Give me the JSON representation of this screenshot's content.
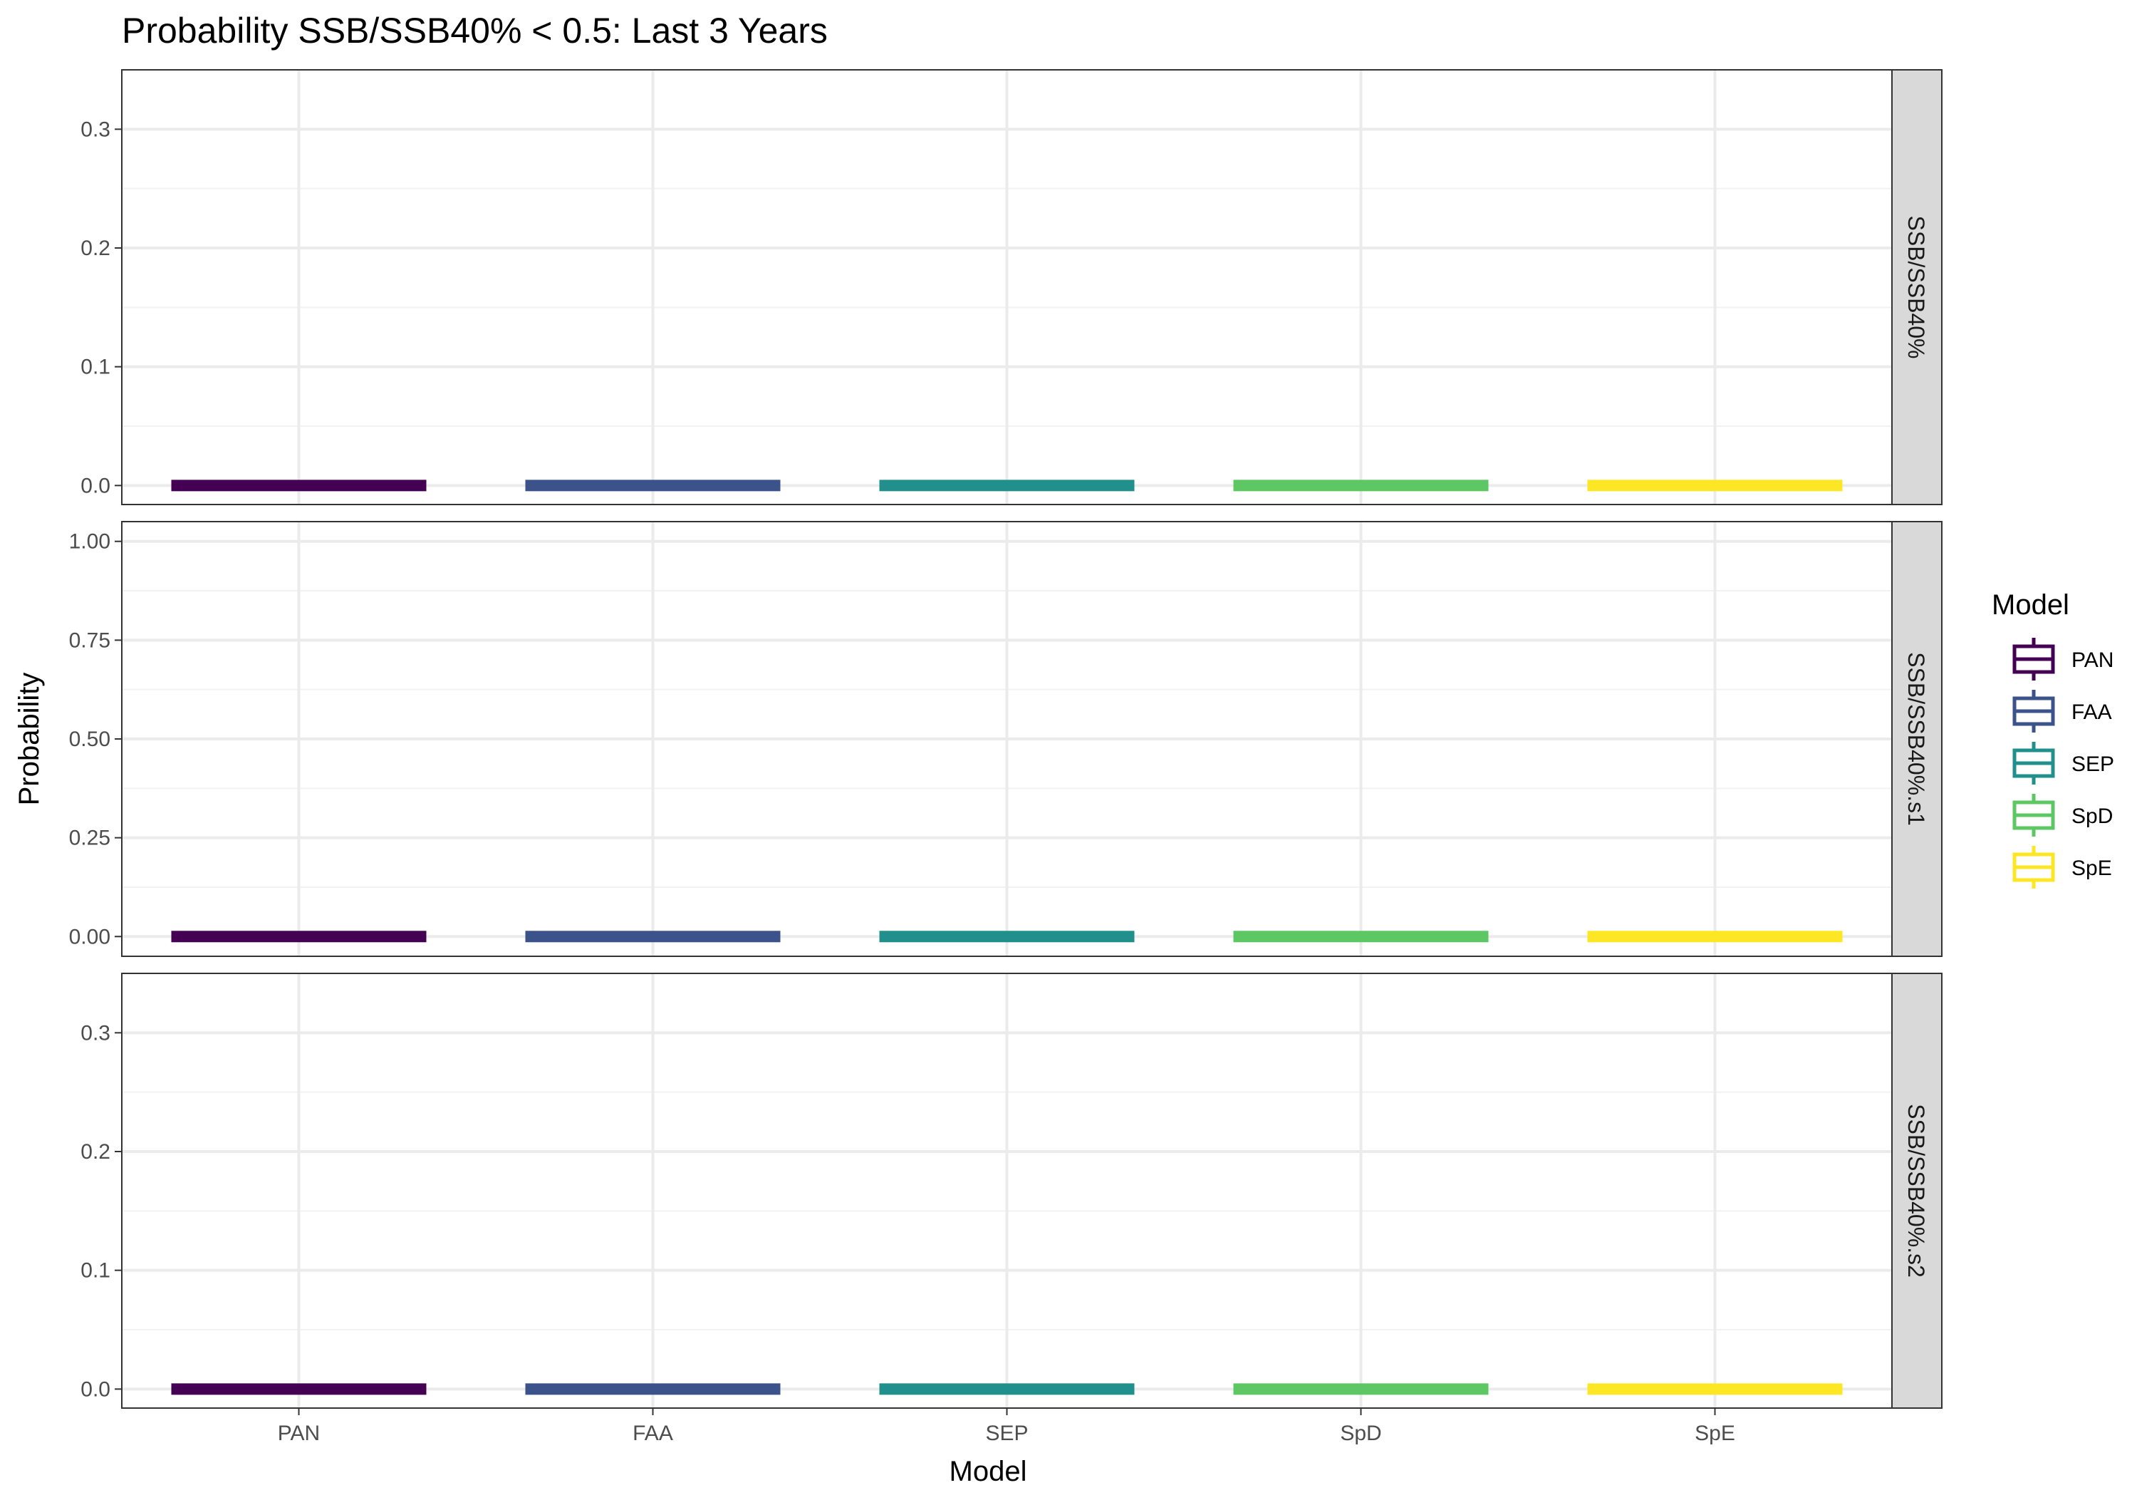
{
  "chart_data": {
    "type": "boxplot",
    "title": "Probability SSB/SSB40% < 0.5: Last 3 Years",
    "xlabel": "Model",
    "ylabel": "Probability",
    "categories": [
      "PAN",
      "FAA",
      "SEP",
      "SpD",
      "SpE"
    ],
    "facets": [
      {
        "label": "SSB/SSB40%",
        "ylim": [
          -0.016,
          0.35
        ],
        "yticks": [
          0.0,
          0.1,
          0.2,
          0.3
        ],
        "ytick_labels": [
          "0.0",
          "0.1",
          "0.2",
          "0.3"
        ],
        "values": [
          0,
          0,
          0,
          0,
          0
        ]
      },
      {
        "label": "SSB/SSB40%.s1",
        "ylim": [
          -0.05,
          1.05
        ],
        "yticks": [
          0.0,
          0.25,
          0.5,
          0.75,
          1.0
        ],
        "ytick_labels": [
          "0.00",
          "0.25",
          "0.50",
          "0.75",
          "1.00"
        ],
        "values": [
          0,
          0,
          0,
          0,
          0
        ]
      },
      {
        "label": "SSB/SSB40%.s2",
        "ylim": [
          -0.016,
          0.35
        ],
        "yticks": [
          0.0,
          0.1,
          0.2,
          0.3
        ],
        "ytick_labels": [
          "0.0",
          "0.1",
          "0.2",
          "0.3"
        ],
        "values": [
          0,
          0,
          0,
          0,
          0
        ]
      }
    ],
    "legend": {
      "title": "Model",
      "position": "right",
      "items": [
        "PAN",
        "FAA",
        "SEP",
        "SpD",
        "SpE"
      ]
    },
    "colors": {
      "PAN": "#440154",
      "FAA": "#3b528b",
      "SEP": "#21908c",
      "SpD": "#5dc863",
      "SpE": "#fde725"
    },
    "grid": true
  }
}
